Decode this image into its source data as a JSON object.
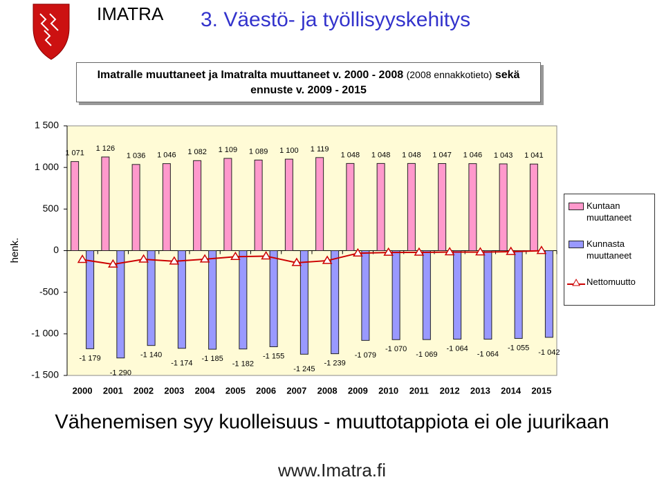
{
  "slide": {
    "brand": "IMATRA",
    "heading": "3. Väestö- ja työllisyyskehitys",
    "conclusion": "Vähenemisen syy kuolleisuus - muuttotappiota ei ole juurikaan",
    "footer": "www.Imatra.fi"
  },
  "chart_data": {
    "type": "bar",
    "title": "Imatralle muuttaneet ja Imatralta muuttaneet v. 2000 - 2008",
    "title_note": "(2008 ennakkotieto)",
    "title_end": "sekä ennuste v. 2009 - 2015",
    "y_label": "henk.",
    "categories": [
      "2000",
      "2001",
      "2002",
      "2003",
      "2004",
      "2005",
      "2006",
      "2007",
      "2008",
      "2009",
      "2010",
      "2011",
      "2012",
      "2013",
      "2014",
      "2015"
    ],
    "ylim": [
      -1500,
      1500
    ],
    "yticks": [
      {
        "value": -1500,
        "label": "-1 500"
      },
      {
        "value": -1000,
        "label": "-1 000"
      },
      -500,
      0,
      500,
      {
        "value": 1000,
        "label": "1 000"
      },
      {
        "value": 1500,
        "label": "1 500"
      }
    ],
    "legend": "right",
    "series": [
      {
        "name": "Kuntaan muuttaneet",
        "type": "bar",
        "color": "#ff99cc",
        "values": [
          1071,
          1126,
          1036,
          1046,
          1082,
          1109,
          1089,
          1100,
          1119,
          1048,
          1048,
          1048,
          1047,
          1046,
          1043,
          1041
        ],
        "value_labels": [
          "1 071",
          "1 126",
          "1 036",
          "1 046",
          "1 082",
          "1 109",
          "1 089",
          "1 100",
          "1 119",
          "1 048",
          "1 048",
          "1 048",
          "1 047",
          "1 046",
          "1 043",
          "1 041"
        ]
      },
      {
        "name": "Kunnasta muuttaneet",
        "type": "bar",
        "color": "#9999ff",
        "values": [
          -1179,
          -1290,
          -1140,
          -1174,
          -1185,
          -1182,
          -1155,
          -1245,
          -1239,
          -1079,
          -1070,
          -1069,
          -1064,
          -1064,
          -1055,
          -1042
        ],
        "value_labels": [
          "-1 179",
          "-1 290",
          "-1 140",
          "-1 174",
          "-1 185",
          "-1 182",
          "-1 155",
          "-1 245",
          "-1 239",
          "-1 079",
          "-1 070",
          "-1 069",
          "-1 064",
          "-1 064",
          "-1 055",
          "-1 042"
        ]
      },
      {
        "name": "Nettomuutto",
        "type": "line",
        "color": "#cc0000",
        "values": [
          -108,
          -164,
          -104,
          -128,
          -103,
          -73,
          -66,
          -145,
          -120,
          -31,
          -22,
          -21,
          -17,
          -18,
          -12,
          -1
        ]
      }
    ]
  }
}
